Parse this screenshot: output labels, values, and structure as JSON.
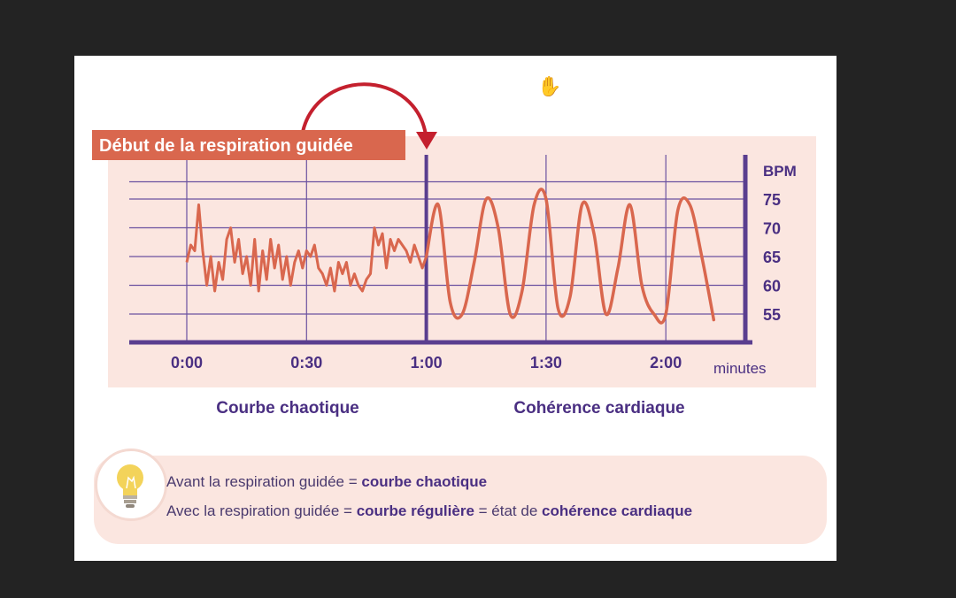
{
  "banner": {
    "label": "Début de la respiration guidée"
  },
  "cursor_icon": "hand-pointer-icon",
  "colors": {
    "panel": "#fbe6e0",
    "axis": "#5a3e8f",
    "grid": "#6b52a0",
    "line": "#d9674e",
    "banner_bg": "#d9674e",
    "arrow": "#c4202e",
    "text_dark": "#4a2f82"
  },
  "chart_data": {
    "type": "line",
    "title": "",
    "xlabel": "minutes",
    "ylabel": "BPM",
    "x_ticks": [
      "0:00",
      "0:30",
      "1:00",
      "1:30",
      "2:00"
    ],
    "y_ticks": [
      55,
      60,
      65,
      70,
      75
    ],
    "ylim": [
      50,
      78
    ],
    "grid": true,
    "marker_time": "1:00",
    "series": [
      {
        "values": [
          {
            "t": "0:00",
            "y": 64
          },
          {
            "t": "0:01",
            "y": 67
          },
          {
            "t": "0:02",
            "y": 66
          },
          {
            "t": "0:03",
            "y": 74
          },
          {
            "t": "0:04",
            "y": 66
          },
          {
            "t": "0:05",
            "y": 60
          },
          {
            "t": "0:06",
            "y": 65
          },
          {
            "t": "0:07",
            "y": 59
          },
          {
            "t": "0:08",
            "y": 64
          },
          {
            "t": "0:09",
            "y": 61
          },
          {
            "t": "0:10",
            "y": 68
          },
          {
            "t": "0:11",
            "y": 70
          },
          {
            "t": "0:12",
            "y": 64
          },
          {
            "t": "0:13",
            "y": 68
          },
          {
            "t": "0:14",
            "y": 62
          },
          {
            "t": "0:15",
            "y": 65
          },
          {
            "t": "0:16",
            "y": 60
          },
          {
            "t": "0:17",
            "y": 68
          },
          {
            "t": "0:18",
            "y": 59
          },
          {
            "t": "0:19",
            "y": 66
          },
          {
            "t": "0:20",
            "y": 61
          },
          {
            "t": "0:21",
            "y": 68
          },
          {
            "t": "0:22",
            "y": 63
          },
          {
            "t": "0:23",
            "y": 67
          },
          {
            "t": "0:24",
            "y": 61
          },
          {
            "t": "0:25",
            "y": 65
          },
          {
            "t": "0:26",
            "y": 60
          },
          {
            "t": "0:27",
            "y": 64
          },
          {
            "t": "0:28",
            "y": 66
          },
          {
            "t": "0:29",
            "y": 63
          },
          {
            "t": "0:30",
            "y": 66
          },
          {
            "t": "0:31",
            "y": 65
          },
          {
            "t": "0:32",
            "y": 67
          },
          {
            "t": "0:33",
            "y": 63
          },
          {
            "t": "0:34",
            "y": 62
          },
          {
            "t": "0:35",
            "y": 60
          },
          {
            "t": "0:36",
            "y": 63
          },
          {
            "t": "0:37",
            "y": 59
          },
          {
            "t": "0:38",
            "y": 64
          },
          {
            "t": "0:39",
            "y": 62
          },
          {
            "t": "0:40",
            "y": 64
          },
          {
            "t": "0:41",
            "y": 60
          },
          {
            "t": "0:42",
            "y": 62
          },
          {
            "t": "0:43",
            "y": 60
          },
          {
            "t": "0:44",
            "y": 59
          },
          {
            "t": "0:45",
            "y": 61
          },
          {
            "t": "0:46",
            "y": 62
          },
          {
            "t": "0:47",
            "y": 70
          },
          {
            "t": "0:48",
            "y": 67
          },
          {
            "t": "0:49",
            "y": 69
          },
          {
            "t": "0:50",
            "y": 63
          },
          {
            "t": "0:51",
            "y": 68
          },
          {
            "t": "0:52",
            "y": 66
          },
          {
            "t": "0:53",
            "y": 68
          },
          {
            "t": "0:54",
            "y": 67
          },
          {
            "t": "0:55",
            "y": 66
          },
          {
            "t": "0:56",
            "y": 64
          },
          {
            "t": "0:57",
            "y": 67
          },
          {
            "t": "0:58",
            "y": 65
          },
          {
            "t": "0:59",
            "y": 63
          },
          {
            "t": "1:00",
            "y": 65
          },
          {
            "t": "1:03",
            "y": 74
          },
          {
            "t": "1:06",
            "y": 57
          },
          {
            "t": "1:09",
            "y": 55
          },
          {
            "t": "1:12",
            "y": 64
          },
          {
            "t": "1:15",
            "y": 75
          },
          {
            "t": "1:18",
            "y": 70
          },
          {
            "t": "1:21",
            "y": 55
          },
          {
            "t": "1:24",
            "y": 59
          },
          {
            "t": "1:27",
            "y": 74
          },
          {
            "t": "1:30",
            "y": 75
          },
          {
            "t": "1:33",
            "y": 56
          },
          {
            "t": "1:36",
            "y": 58
          },
          {
            "t": "1:39",
            "y": 74
          },
          {
            "t": "1:42",
            "y": 69
          },
          {
            "t": "1:45",
            "y": 55
          },
          {
            "t": "1:48",
            "y": 63
          },
          {
            "t": "1:51",
            "y": 74
          },
          {
            "t": "1:54",
            "y": 60
          },
          {
            "t": "1:57",
            "y": 55
          },
          {
            "t": "2:00",
            "y": 55
          },
          {
            "t": "2:03",
            "y": 73
          },
          {
            "t": "2:06",
            "y": 74
          },
          {
            "t": "2:09",
            "y": 65
          },
          {
            "t": "2:12",
            "y": 54
          }
        ]
      }
    ]
  },
  "segments": {
    "left": "Courbe chaotique",
    "right": "Cohérence cardiaque"
  },
  "info": {
    "icon": "lightbulb-icon",
    "line1_prefix": "Avant la respiration guidée = ",
    "line1_bold": "courbe chaotique",
    "line2_prefix": "Avec la respiration guidée = ",
    "line2_bold1": "courbe régulière",
    "line2_mid": " = état de ",
    "line2_bold2": "cohérence cardiaque"
  }
}
